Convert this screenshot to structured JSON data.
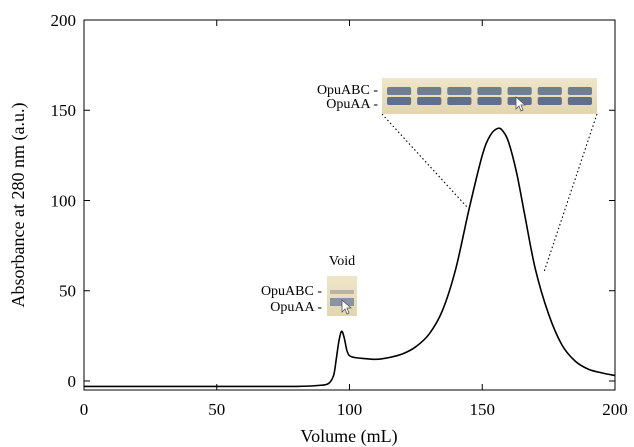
{
  "chart_data": {
    "type": "line",
    "title": "",
    "xlabel": "Volume (mL)",
    "ylabel": "Absorbance at 280 nm (a.u.)",
    "xlim": [
      0,
      200
    ],
    "ylim": [
      -5,
      200
    ],
    "xticks": [
      0,
      50,
      100,
      150,
      200
    ],
    "yticks": [
      0,
      50,
      100,
      150,
      200
    ],
    "grid": false,
    "series": [
      {
        "color": "#000000",
        "x": [
          0,
          20,
          40,
          60,
          80,
          88,
          92,
          94,
          95,
          96,
          97,
          98,
          99,
          100,
          102,
          105,
          110,
          115,
          120,
          125,
          130,
          135,
          140,
          145,
          150,
          153,
          156,
          158,
          160,
          163,
          166,
          170,
          175,
          180,
          185,
          190,
          195,
          200
        ],
        "y": [
          -3,
          -3,
          -3,
          -3,
          -3,
          -2.5,
          -1.5,
          3,
          12,
          22,
          27.5,
          24,
          17,
          14,
          13,
          12.5,
          12,
          13,
          15,
          19,
          26,
          39,
          62,
          95,
          125,
          136,
          140,
          138,
          132,
          115,
          92,
          62,
          37,
          20,
          11,
          6.5,
          4.5,
          3
        ]
      }
    ],
    "insets": [
      {
        "title": "",
        "labels": [
          "OpuABC -",
          "OpuAA -"
        ],
        "lanes": 7
      },
      {
        "title": "Void",
        "labels": [
          "OpuABC -",
          "OpuAA -"
        ],
        "lanes": 1
      }
    ]
  }
}
